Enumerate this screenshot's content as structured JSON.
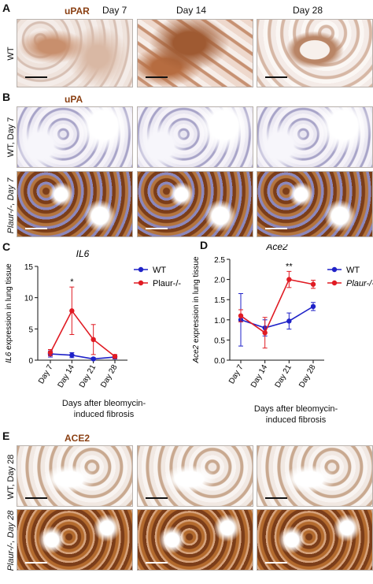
{
  "panel_a": {
    "label": "A",
    "stain": "uPAR",
    "days": [
      "Day 7",
      "Day 14",
      "Day 28"
    ],
    "row_label": "WT"
  },
  "panel_b": {
    "label": "B",
    "stain": "uPA",
    "row_labels": [
      "WT, Day 7",
      "Plaur-/-, Day 7"
    ]
  },
  "panel_c": {
    "label": "C",
    "xlabel": "Days after bleomycin-induced fibrosis",
    "xlabel_lines": [
      "Days after bleomycin-",
      "induced fibrosis"
    ],
    "legend": [
      "WT",
      "Plaur-/-"
    ]
  },
  "panel_d": {
    "label": "D",
    "xlabel": "Days after bleomycin-induced fibrosis",
    "xlabel_lines": [
      "Days after bleomycin-",
      "induced fibrosis"
    ],
    "legend": [
      "WT",
      "Plaur-/-"
    ]
  },
  "panel_e": {
    "label": "E",
    "stain": "ACE2",
    "row_labels": [
      "WT, Day 28",
      "Plaur-/-, Day 28"
    ]
  },
  "colors": {
    "wt": "#1f22c8",
    "ko": "#e01b23",
    "stain": "#8a3f12"
  },
  "chart_data": [
    {
      "type": "line",
      "title": "IL6",
      "xlabel": "Days after bleomycin-induced fibrosis",
      "ylabel": "IL6 expression in lung tissue",
      "categories": [
        "Day 7",
        "Day 14",
        "Day 21",
        "Day 28"
      ],
      "ylim": [
        0,
        15
      ],
      "yticks": [
        0,
        5,
        10,
        15
      ],
      "series": [
        {
          "name": "WT",
          "values": [
            1.0,
            0.8,
            0.2,
            0.5
          ],
          "errors": [
            0.5,
            0.4,
            0.2,
            0.3
          ]
        },
        {
          "name": "Plaur-/-",
          "values": [
            1.2,
            7.9,
            3.3,
            0.6
          ],
          "errors": [
            0.5,
            3.8,
            2.4,
            0.3
          ]
        }
      ],
      "annotations": [
        {
          "category": "Day 14",
          "text": "*"
        }
      ]
    },
    {
      "type": "line",
      "title": "Ace2",
      "xlabel": "Days after bleomycin-induced fibrosis",
      "ylabel": "Ace2 expression in lung tissue",
      "categories": [
        "Day 7",
        "Day 14",
        "Day 21",
        "Day 28"
      ],
      "ylim": [
        0,
        2.5
      ],
      "yticks": [
        0,
        0.5,
        1.0,
        1.5,
        2.0,
        2.5
      ],
      "series": [
        {
          "name": "WT",
          "values": [
            1.0,
            0.8,
            0.97,
            1.33
          ],
          "errors": [
            0.65,
            0.2,
            0.2,
            0.1
          ]
        },
        {
          "name": "Plaur-/-",
          "values": [
            1.1,
            0.68,
            2.0,
            1.88
          ],
          "errors": [
            0.15,
            0.38,
            0.2,
            0.1
          ]
        }
      ],
      "annotations": [
        {
          "category": "Day 21",
          "text": "**"
        }
      ]
    }
  ]
}
